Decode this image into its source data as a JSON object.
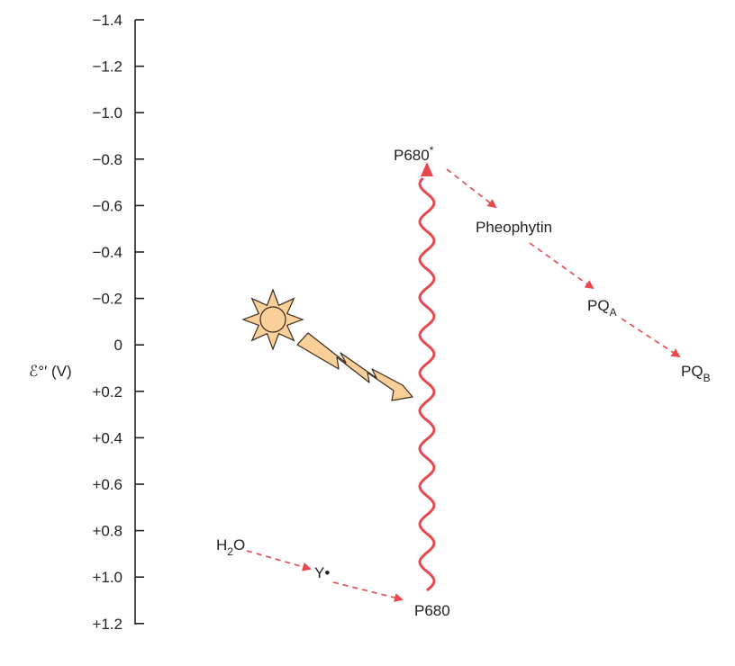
{
  "axis": {
    "title": "ℰ°′ (V)",
    "ticks": [
      "−1.4",
      "−1.2",
      "−1.0",
      "−0.8",
      "−0.6",
      "−0.4",
      "−0.2",
      "0",
      "+0.2",
      "+0.4",
      "+0.6",
      "+0.8",
      "+1.0",
      "+1.2"
    ]
  },
  "nodes": {
    "p680_excited": {
      "base": "P680",
      "sup": "*"
    },
    "pheophytin": {
      "base": "Pheophytin"
    },
    "pqa": {
      "base": "PQ",
      "sub": "A"
    },
    "pqb": {
      "base": "PQ",
      "sub": "B"
    },
    "water": {
      "base": "H",
      "sub": "2",
      "tail": "O"
    },
    "y_radical": {
      "base": "Y•"
    },
    "p680_ground": {
      "base": "P680"
    }
  },
  "colors": {
    "arrow": "#e8474c",
    "sun_fill": "#f9cf9a",
    "sun_stroke": "#3a2a1a",
    "axis": "#222222"
  },
  "icons": {
    "sun": "sun-icon",
    "lightning": "lightning-bolt-icon"
  }
}
